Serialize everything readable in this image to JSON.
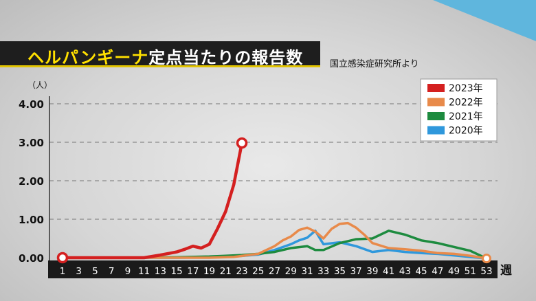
{
  "title": {
    "accent": "ヘルパンギーナ",
    "rest": "定点当たりの報告数"
  },
  "source": "国立感染症研究所より",
  "colors": {
    "title_accent": "#ffe000",
    "title_bar": "#1e1e1e",
    "axis_bar": "#1a1a1a",
    "corner_accent": "#5fb6dd"
  },
  "chart_data": {
    "type": "line",
    "title": "ヘルパンギーナ定点当たりの報告数",
    "y_unit": "（人）",
    "x_unit": "週",
    "xlim": [
      1,
      53
    ],
    "ylim": [
      0,
      4.0
    ],
    "grid": "horizontal dashed",
    "legend_position": "top-right",
    "x_tick_labels": [
      "1",
      "3",
      "5",
      "7",
      "9",
      "11",
      "13",
      "15",
      "17",
      "19",
      "21",
      "23",
      "25",
      "27",
      "29",
      "31",
      "33",
      "35",
      "37",
      "39",
      "41",
      "43",
      "45",
      "47",
      "49",
      "51",
      "53"
    ],
    "x_ticks": [
      1,
      3,
      5,
      7,
      9,
      11,
      13,
      15,
      17,
      19,
      21,
      23,
      25,
      27,
      29,
      31,
      33,
      35,
      37,
      39,
      41,
      43,
      45,
      47,
      49,
      51,
      53
    ],
    "y_tick_labels": [
      "0.00",
      "1.00",
      "2.00",
      "3.00",
      "4.00"
    ],
    "y_ticks": [
      0,
      1,
      2,
      3,
      4
    ],
    "series": [
      {
        "name": "2020年",
        "color": "#2f98dc",
        "x": [
          1,
          5,
          10,
          15,
          19,
          22,
          25,
          27,
          29,
          30,
          31,
          32,
          33,
          35,
          37,
          39,
          41,
          43,
          45,
          47,
          49,
          51,
          53
        ],
        "y": [
          0.0,
          0.0,
          0.0,
          0.0,
          0.01,
          0.03,
          0.08,
          0.2,
          0.35,
          0.45,
          0.52,
          0.7,
          0.35,
          0.4,
          0.3,
          0.15,
          0.2,
          0.15,
          0.12,
          0.1,
          0.06,
          0.02,
          -0.02
        ]
      },
      {
        "name": "2021年",
        "color": "#1d8b3f",
        "x": [
          1,
          5,
          10,
          15,
          19,
          21,
          23,
          25,
          27,
          29,
          31,
          32,
          33,
          35,
          37,
          39,
          41,
          43,
          45,
          47,
          49,
          51,
          53
        ],
        "y": [
          0.0,
          0.0,
          0.0,
          0.01,
          0.03,
          0.05,
          0.07,
          0.1,
          0.15,
          0.25,
          0.3,
          0.2,
          0.2,
          0.38,
          0.48,
          0.5,
          0.7,
          0.6,
          0.45,
          0.38,
          0.28,
          0.18,
          -0.02
        ]
      },
      {
        "name": "2022年",
        "color": "#e88a4a",
        "x": [
          1,
          5,
          10,
          15,
          19,
          22,
          25,
          27,
          28,
          29,
          30,
          31,
          32,
          33,
          34,
          35,
          36,
          37,
          38,
          39,
          41,
          43,
          45,
          47,
          49,
          51,
          53
        ],
        "y": [
          0.0,
          0.0,
          0.0,
          0.0,
          0.0,
          0.02,
          0.1,
          0.3,
          0.45,
          0.55,
          0.72,
          0.78,
          0.68,
          0.5,
          0.75,
          0.88,
          0.9,
          0.78,
          0.6,
          0.38,
          0.25,
          0.22,
          0.18,
          0.12,
          0.1,
          0.05,
          -0.02
        ]
      },
      {
        "name": "2023年",
        "color": "#d42020",
        "x": [
          1,
          3,
          5,
          7,
          9,
          11,
          13,
          15,
          16,
          17,
          18,
          19,
          20,
          21,
          22,
          23
        ],
        "y": [
          0.0,
          0.0,
          0.0,
          0.0,
          0.0,
          0.0,
          0.07,
          0.15,
          0.22,
          0.3,
          0.25,
          0.35,
          0.75,
          1.2,
          1.9,
          2.98
        ]
      }
    ],
    "legend": [
      "2023年",
      "2022年",
      "2021年",
      "2020年"
    ]
  }
}
